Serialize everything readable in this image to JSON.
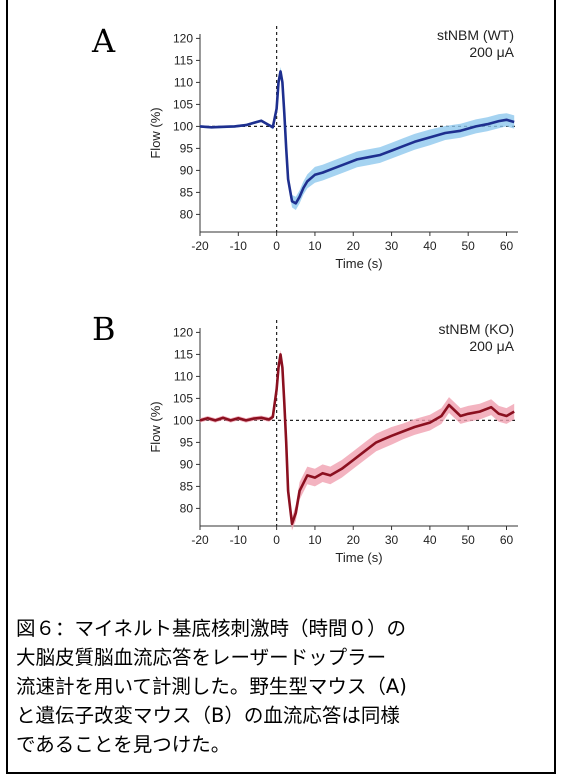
{
  "chart_data": [
    {
      "type": "line",
      "panel_label": "A",
      "annotation": [
        "stNBM (WT)",
        "200 μA"
      ],
      "xlabel": "Time (s)",
      "ylabel": "Flow (%)",
      "xlim": [
        -20,
        63
      ],
      "ylim": [
        76,
        121
      ],
      "xticks": [
        -20,
        -10,
        0,
        10,
        20,
        30,
        40,
        50,
        60
      ],
      "yticks": [
        80,
        85,
        90,
        95,
        100,
        105,
        110,
        115,
        120
      ],
      "baseline_y": 100,
      "stim_x": 0,
      "line_color": "#1e2f8f",
      "band_color": "#8ec8ee",
      "series": [
        {
          "x": [
            -20,
            -17,
            -14,
            -11,
            -8,
            -6,
            -4,
            -2,
            -1,
            0,
            0.5,
            1,
            1.5,
            2,
            2.5,
            3,
            4,
            5,
            6,
            7,
            8,
            10,
            12,
            15,
            18,
            21,
            24,
            27,
            30,
            33,
            36,
            40,
            44,
            48,
            52,
            55,
            58,
            60,
            62
          ],
          "y": [
            100,
            99.8,
            99.9,
            100,
            100.3,
            100.8,
            101.3,
            100.3,
            99.8,
            104,
            110,
            112.5,
            110,
            103,
            95,
            88,
            83,
            82.5,
            84,
            86,
            87.5,
            89,
            89.5,
            90.5,
            91.5,
            92.5,
            93,
            93.5,
            94.5,
            95.5,
            96.5,
            97.5,
            98.5,
            99,
            100,
            100.5,
            101.2,
            101.5,
            101
          ],
          "ci": [
            0.3,
            0.3,
            0.3,
            0.3,
            0.3,
            0.3,
            0.3,
            0.3,
            0.5,
            0.8,
            1,
            1,
            1,
            1,
            1.2,
            1.3,
            1.4,
            1.5,
            1.5,
            1.5,
            1.6,
            1.8,
            1.8,
            1.8,
            1.8,
            1.8,
            1.8,
            1.8,
            1.8,
            1.8,
            1.8,
            1.8,
            1.6,
            1.6,
            1.6,
            1.6,
            1.6,
            1.5,
            1.5
          ]
        }
      ]
    },
    {
      "type": "line",
      "panel_label": "B",
      "annotation": [
        "stNBM (KO)",
        "200 μA"
      ],
      "xlabel": "Time (s)",
      "ylabel": "Flow (%)",
      "xlim": [
        -20,
        63
      ],
      "ylim": [
        76,
        121
      ],
      "xticks": [
        -20,
        -10,
        0,
        10,
        20,
        30,
        40,
        50,
        60
      ],
      "yticks": [
        80,
        85,
        90,
        95,
        100,
        105,
        110,
        115,
        120
      ],
      "baseline_y": 100,
      "stim_x": 0,
      "line_color": "#8b1020",
      "band_color": "#f0a0b0",
      "series": [
        {
          "x": [
            -20,
            -18,
            -16,
            -14,
            -12,
            -10,
            -8,
            -6,
            -4,
            -2,
            -1,
            0,
            0.5,
            1,
            1.5,
            2,
            2.5,
            3,
            4,
            5,
            6,
            8,
            10,
            12,
            14,
            17,
            20,
            23,
            26,
            30,
            33,
            36,
            40,
            43,
            45,
            48,
            50,
            53,
            56,
            58,
            60,
            62
          ],
          "y": [
            100,
            100.5,
            100,
            100.6,
            100,
            100.5,
            100,
            100.4,
            100.6,
            100.2,
            100.8,
            107,
            112,
            115,
            112,
            104,
            95,
            84,
            76.5,
            79,
            84,
            87.5,
            87,
            88,
            87.5,
            89,
            91,
            93,
            95,
            96.5,
            97.5,
            98.5,
            99.5,
            101,
            103.5,
            101,
            101.5,
            102,
            103,
            101.5,
            101,
            102
          ],
          "ci": [
            0.5,
            0.5,
            0.5,
            0.5,
            0.5,
            0.5,
            0.5,
            0.5,
            0.5,
            0.5,
            0.6,
            1,
            1,
            1,
            1,
            1,
            1.2,
            1.5,
            1.5,
            1.8,
            2,
            2,
            2,
            2,
            2,
            2,
            2,
            2,
            2,
            2,
            1.8,
            1.8,
            1.8,
            1.8,
            1.8,
            1.8,
            1.8,
            1.8,
            1.8,
            1.8,
            1.8,
            1.8
          ]
        }
      ]
    }
  ],
  "caption": [
    "図６：マイネルト基底核刺激時（時間０）の",
    "大脳皮質脳血流応答をレーザードップラー",
    "流速計を用いて計測した。野生型マウス（A)",
    "と遺伝子改変マウス（B）の血流応答は同様",
    "であることを見つけた。"
  ]
}
